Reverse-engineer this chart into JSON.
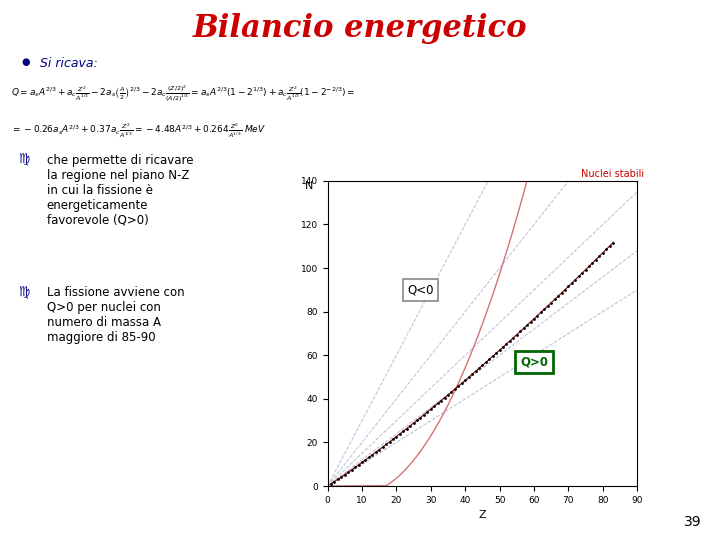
{
  "title": "Bilancio energetico",
  "title_color": "#cc0000",
  "title_fontsize": 22,
  "background_color": "#ffffff",
  "bullet_color": "#000080",
  "bullet_text": "Si ricava:",
  "bullet_text_color": "#000080",
  "formula_color": "#000000",
  "bullet1_symbol": "♍",
  "bullet1_text": "che permette di ricavare\nla regione nel piano N-Z\nin cui la fissione è\nenergeticamente\nfavorevole (Q>0)",
  "bullet2_text": "La fissione avviene con\nQ>0 per nuclei con\nnumero di massa A\nmaggiore di 85-90",
  "bullet_body_color": "#000000",
  "plot_xlabel": "Z",
  "plot_ylabel": "N",
  "plot_xlim": [
    0,
    90
  ],
  "plot_ylim": [
    0,
    140
  ],
  "plot_xticks": [
    0,
    10,
    20,
    30,
    40,
    50,
    60,
    70,
    80,
    90
  ],
  "plot_yticks": [
    0,
    20,
    40,
    60,
    80,
    100,
    120,
    140
  ],
  "stable_line_color": "#8b0000",
  "stable_line_label": "Nuclei stabili",
  "dashed_line_color": "#aaaacc",
  "Q_lt0_label": "Q<0",
  "Q_gt0_label": "Q>0",
  "Q_gt0_box_color": "#006600",
  "page_number": "39"
}
